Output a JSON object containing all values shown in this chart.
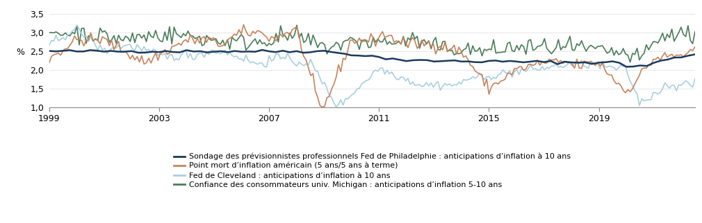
{
  "title": "",
  "ylabel": "%",
  "ylim": [
    1.0,
    3.7
  ],
  "yticks": [
    1.0,
    1.5,
    2.0,
    2.5,
    3.0,
    3.5
  ],
  "ytick_labels": [
    "1,0",
    "1,5",
    "2,0",
    "2,5",
    "3,0",
    "3,5"
  ],
  "xlim": [
    1999.0,
    2022.5
  ],
  "xticks": [
    1999,
    2003,
    2007,
    2011,
    2015,
    2019
  ],
  "background_color": "#ffffff",
  "line_colors": {
    "spf": "#1a3a5c",
    "breakeven": "#c8825a",
    "cleveland": "#a8cfe0",
    "michigan": "#4a7c5a"
  },
  "line_widths": {
    "spf": 1.8,
    "breakeven": 1.2,
    "cleveland": 1.2,
    "michigan": 1.2
  },
  "legend_labels": [
    "Sondage des prévisionnistes professionnels Fed de Philadelphie : anticipations d’inflation à 10 ans",
    "Point mort d’inflation américain (5 ans/5 ans à terme)",
    "Fed de Cleveland : anticipations d’inflation à 10 ans",
    "Confiance des consommateurs univ. Michigan : anticipations d’inflation 5-10 ans"
  ],
  "legend_colors": [
    "#1a3a5c",
    "#c8825a",
    "#a8cfe0",
    "#4a7c5a"
  ],
  "font_size": 8.5,
  "tick_fontsize": 9,
  "legend_fontsize": 8
}
